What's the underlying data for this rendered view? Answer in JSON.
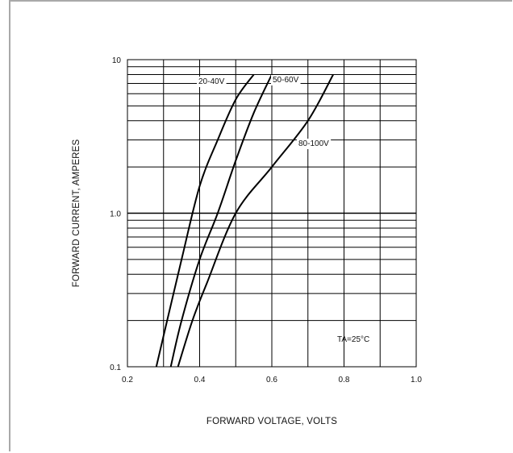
{
  "chart_data": {
    "type": "line",
    "xlabel": "FORWARD VOLTAGE, VOLTS",
    "ylabel": "FORWARD CURRENT, AMPERES",
    "xlim": [
      0.2,
      1.0
    ],
    "ylim": [
      0.1,
      10
    ],
    "yscale": "log",
    "grid": true,
    "x_ticks": [
      0.2,
      0.4,
      0.6,
      0.8,
      1.0
    ],
    "x_tick_labels": [
      "0.2",
      "0.4",
      "0.6",
      "0.8",
      "1.0"
    ],
    "y_ticks": [
      0.1,
      1.0,
      10
    ],
    "y_tick_labels": [
      "0.1",
      "1.0",
      "10"
    ],
    "annotation": "TA=25°C",
    "series": [
      {
        "name": "20-40V",
        "x": [
          0.28,
          0.31,
          0.35,
          0.4,
          0.45,
          0.5,
          0.55
        ],
        "y": [
          0.1,
          0.2,
          0.5,
          1.5,
          3.0,
          5.5,
          8.0
        ]
      },
      {
        "name": "50-60V",
        "x": [
          0.32,
          0.35,
          0.4,
          0.45,
          0.5,
          0.55,
          0.6
        ],
        "y": [
          0.1,
          0.2,
          0.5,
          1.0,
          2.2,
          4.5,
          8.0
        ]
      },
      {
        "name": "80-100V",
        "x": [
          0.34,
          0.38,
          0.42,
          0.5,
          0.6,
          0.7,
          0.77
        ],
        "y": [
          0.1,
          0.2,
          0.35,
          1.0,
          2.0,
          4.0,
          8.0
        ]
      }
    ]
  }
}
